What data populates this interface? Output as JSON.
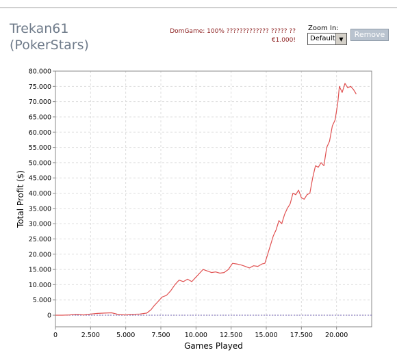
{
  "header": {
    "player_name": "Trekan61",
    "site": "(PokerStars)",
    "promo_line1": "DomGame: 100% ????????????? ????? ??",
    "promo_line2": "€1.000!"
  },
  "zoom": {
    "label": "Zoom In:",
    "selected": "Default",
    "arrow": "▼"
  },
  "remove_button": {
    "label": "Remove"
  },
  "chart_data": {
    "type": "line",
    "xlabel": "Games Played",
    "ylabel": "Total Profit ($)",
    "xlim": [
      0,
      22500
    ],
    "ylim": [
      -3800,
      80000
    ],
    "xticks": [
      0,
      2500,
      5000,
      7500,
      10000,
      12500,
      15000,
      17500,
      20000
    ],
    "xtick_labels": [
      "0",
      "2.500",
      "5.000",
      "7.500",
      "10.000",
      "12.500",
      "15.000",
      "17.500",
      "20.000"
    ],
    "yticks": [
      0,
      5000,
      10000,
      15000,
      20000,
      25000,
      30000,
      35000,
      40000,
      45000,
      50000,
      55000,
      60000,
      65000,
      70000,
      75000,
      80000
    ],
    "ytick_labels": [
      "0",
      "5.000",
      "10.000",
      "15.000",
      "20.000",
      "25.000",
      "30.000",
      "35.000",
      "40.000",
      "45.000",
      "50.000",
      "55.000",
      "60.000",
      "65.000",
      "70.000",
      "75.000",
      "80.000"
    ],
    "grid": true,
    "line_color": "#e05050",
    "zero_line_color": "#6f5fb0",
    "series": [
      {
        "x": [
          0,
          500,
          1000,
          1500,
          2000,
          2500,
          3000,
          3500,
          4000,
          4500,
          5000,
          5500,
          6000,
          6500,
          6800,
          7000,
          7300,
          7600,
          7900,
          8200,
          8500,
          8800,
          9100,
          9400,
          9700,
          10000,
          10300,
          10500,
          10800,
          11100,
          11400,
          11700,
          12000,
          12300,
          12600,
          12900,
          13200,
          13500,
          13800,
          14100,
          14400,
          14700,
          14900,
          15100,
          15300,
          15500,
          15700,
          15900,
          16100,
          16300,
          16500,
          16700,
          16900,
          17100,
          17300,
          17500,
          17700,
          17900,
          18100,
          18300,
          18500,
          18700,
          18900,
          19100,
          19300,
          19500,
          19700,
          19900,
          20000,
          20100,
          20200,
          20400,
          20600,
          20800,
          21000,
          21200,
          21400
        ],
        "y": [
          0,
          0,
          100,
          300,
          100,
          400,
          600,
          700,
          800,
          200,
          100,
          300,
          400,
          700,
          1800,
          3000,
          4500,
          6000,
          6500,
          8000,
          10000,
          11500,
          11000,
          11800,
          11000,
          12500,
          14000,
          15000,
          14500,
          14000,
          14200,
          13800,
          14000,
          15000,
          17000,
          16800,
          16500,
          16000,
          15500,
          16200,
          16000,
          16800,
          17000,
          20000,
          23000,
          26000,
          28000,
          31000,
          30000,
          33000,
          35000,
          36500,
          40000,
          39500,
          41000,
          38500,
          38000,
          39500,
          40000,
          45000,
          49000,
          48500,
          50000,
          49000,
          55000,
          57000,
          62000,
          64000,
          67000,
          70000,
          75000,
          73000,
          76000,
          74500,
          75000,
          74000,
          72500
        ]
      }
    ]
  }
}
